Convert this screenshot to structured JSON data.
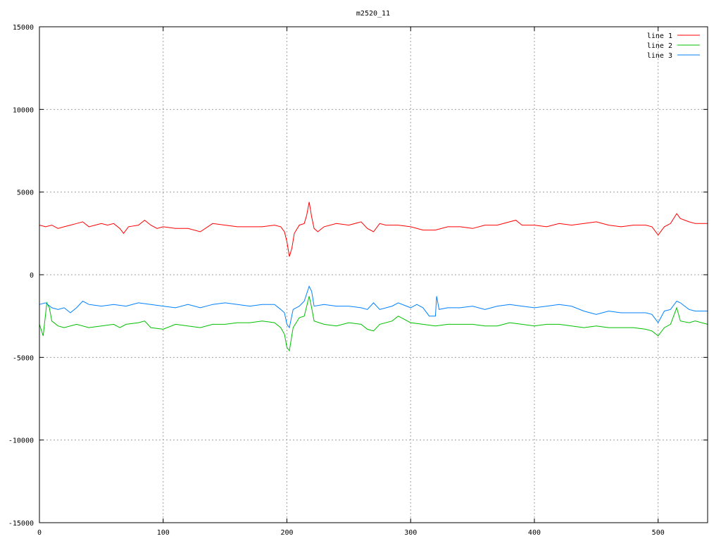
{
  "chart_data": {
    "type": "line",
    "title": "m2520_11",
    "xlabel": "",
    "ylabel": "",
    "xlim": [
      0,
      540
    ],
    "ylim": [
      -15000,
      15000
    ],
    "xticks": [
      0,
      100,
      200,
      300,
      400,
      500
    ],
    "yticks": [
      -15000,
      -10000,
      -5000,
      0,
      5000,
      10000,
      15000
    ],
    "grid": true,
    "legend_position": "top-right",
    "series": [
      {
        "name": "line 1",
        "color": "#ff0000",
        "points": [
          [
            0,
            3000
          ],
          [
            5,
            2900
          ],
          [
            10,
            3000
          ],
          [
            15,
            2800
          ],
          [
            20,
            2900
          ],
          [
            25,
            3000
          ],
          [
            30,
            3100
          ],
          [
            35,
            3200
          ],
          [
            40,
            2900
          ],
          [
            45,
            3000
          ],
          [
            50,
            3100
          ],
          [
            55,
            3000
          ],
          [
            60,
            3100
          ],
          [
            65,
            2800
          ],
          [
            68,
            2500
          ],
          [
            72,
            2900
          ],
          [
            80,
            3000
          ],
          [
            85,
            3300
          ],
          [
            90,
            3000
          ],
          [
            95,
            2800
          ],
          [
            100,
            2900
          ],
          [
            110,
            2800
          ],
          [
            120,
            2800
          ],
          [
            130,
            2600
          ],
          [
            140,
            3100
          ],
          [
            150,
            3000
          ],
          [
            160,
            2900
          ],
          [
            170,
            2900
          ],
          [
            180,
            2900
          ],
          [
            190,
            3000
          ],
          [
            195,
            2900
          ],
          [
            198,
            2600
          ],
          [
            200,
            2000
          ],
          [
            202,
            1100
          ],
          [
            204,
            1600
          ],
          [
            206,
            2500
          ],
          [
            210,
            3000
          ],
          [
            214,
            3100
          ],
          [
            216,
            3600
          ],
          [
            218,
            4400
          ],
          [
            220,
            3500
          ],
          [
            222,
            2800
          ],
          [
            225,
            2600
          ],
          [
            230,
            2900
          ],
          [
            240,
            3100
          ],
          [
            250,
            3000
          ],
          [
            260,
            3200
          ],
          [
            265,
            2800
          ],
          [
            270,
            2600
          ],
          [
            275,
            3100
          ],
          [
            280,
            3000
          ],
          [
            290,
            3000
          ],
          [
            300,
            2900
          ],
          [
            310,
            2700
          ],
          [
            320,
            2700
          ],
          [
            330,
            2900
          ],
          [
            340,
            2900
          ],
          [
            350,
            2800
          ],
          [
            360,
            3000
          ],
          [
            370,
            3000
          ],
          [
            380,
            3200
          ],
          [
            385,
            3300
          ],
          [
            390,
            3000
          ],
          [
            400,
            3000
          ],
          [
            410,
            2900
          ],
          [
            420,
            3100
          ],
          [
            430,
            3000
          ],
          [
            440,
            3100
          ],
          [
            450,
            3200
          ],
          [
            460,
            3000
          ],
          [
            470,
            2900
          ],
          [
            480,
            3000
          ],
          [
            490,
            3000
          ],
          [
            495,
            2900
          ],
          [
            500,
            2400
          ],
          [
            505,
            2900
          ],
          [
            510,
            3100
          ],
          [
            515,
            3700
          ],
          [
            518,
            3400
          ],
          [
            525,
            3200
          ],
          [
            530,
            3100
          ],
          [
            540,
            3100
          ]
        ]
      },
      {
        "name": "line 2",
        "color": "#00c000",
        "points": [
          [
            0,
            -3000
          ],
          [
            3,
            -3700
          ],
          [
            6,
            -1700
          ],
          [
            8,
            -2000
          ],
          [
            10,
            -2800
          ],
          [
            15,
            -3100
          ],
          [
            20,
            -3200
          ],
          [
            30,
            -3000
          ],
          [
            40,
            -3200
          ],
          [
            50,
            -3100
          ],
          [
            60,
            -3000
          ],
          [
            65,
            -3200
          ],
          [
            70,
            -3000
          ],
          [
            80,
            -2900
          ],
          [
            85,
            -2800
          ],
          [
            90,
            -3200
          ],
          [
            100,
            -3300
          ],
          [
            110,
            -3000
          ],
          [
            120,
            -3100
          ],
          [
            130,
            -3200
          ],
          [
            140,
            -3000
          ],
          [
            150,
            -3000
          ],
          [
            160,
            -2900
          ],
          [
            170,
            -2900
          ],
          [
            180,
            -2800
          ],
          [
            190,
            -2900
          ],
          [
            195,
            -3200
          ],
          [
            198,
            -3600
          ],
          [
            200,
            -4400
          ],
          [
            202,
            -4600
          ],
          [
            205,
            -3200
          ],
          [
            210,
            -2600
          ],
          [
            214,
            -2500
          ],
          [
            218,
            -1300
          ],
          [
            220,
            -2000
          ],
          [
            222,
            -2800
          ],
          [
            230,
            -3000
          ],
          [
            240,
            -3100
          ],
          [
            250,
            -2900
          ],
          [
            260,
            -3000
          ],
          [
            265,
            -3300
          ],
          [
            270,
            -3400
          ],
          [
            275,
            -3000
          ],
          [
            285,
            -2800
          ],
          [
            290,
            -2500
          ],
          [
            300,
            -2900
          ],
          [
            310,
            -3000
          ],
          [
            320,
            -3100
          ],
          [
            330,
            -3000
          ],
          [
            340,
            -3000
          ],
          [
            350,
            -3000
          ],
          [
            360,
            -3100
          ],
          [
            370,
            -3100
          ],
          [
            380,
            -2900
          ],
          [
            390,
            -3000
          ],
          [
            400,
            -3100
          ],
          [
            410,
            -3000
          ],
          [
            420,
            -3000
          ],
          [
            430,
            -3100
          ],
          [
            440,
            -3200
          ],
          [
            450,
            -3100
          ],
          [
            460,
            -3200
          ],
          [
            470,
            -3200
          ],
          [
            480,
            -3200
          ],
          [
            490,
            -3300
          ],
          [
            495,
            -3400
          ],
          [
            500,
            -3700
          ],
          [
            505,
            -3200
          ],
          [
            510,
            -3000
          ],
          [
            515,
            -2000
          ],
          [
            518,
            -2800
          ],
          [
            525,
            -2900
          ],
          [
            530,
            -2800
          ],
          [
            540,
            -3000
          ]
        ]
      },
      {
        "name": "line 3",
        "color": "#0080ff",
        "points": [
          [
            0,
            -1800
          ],
          [
            5,
            -1700
          ],
          [
            10,
            -2000
          ],
          [
            15,
            -2100
          ],
          [
            20,
            -2000
          ],
          [
            25,
            -2300
          ],
          [
            30,
            -2000
          ],
          [
            35,
            -1600
          ],
          [
            40,
            -1800
          ],
          [
            50,
            -1900
          ],
          [
            60,
            -1800
          ],
          [
            70,
            -1900
          ],
          [
            80,
            -1700
          ],
          [
            90,
            -1800
          ],
          [
            100,
            -1900
          ],
          [
            110,
            -2000
          ],
          [
            120,
            -1800
          ],
          [
            130,
            -2000
          ],
          [
            140,
            -1800
          ],
          [
            150,
            -1700
          ],
          [
            160,
            -1800
          ],
          [
            170,
            -1900
          ],
          [
            180,
            -1800
          ],
          [
            190,
            -1800
          ],
          [
            195,
            -2100
          ],
          [
            198,
            -2300
          ],
          [
            200,
            -3000
          ],
          [
            202,
            -3200
          ],
          [
            205,
            -2100
          ],
          [
            210,
            -1900
          ],
          [
            214,
            -1600
          ],
          [
            218,
            -700
          ],
          [
            220,
            -1000
          ],
          [
            222,
            -1900
          ],
          [
            230,
            -1800
          ],
          [
            240,
            -1900
          ],
          [
            250,
            -1900
          ],
          [
            260,
            -2000
          ],
          [
            265,
            -2100
          ],
          [
            270,
            -1700
          ],
          [
            275,
            -2100
          ],
          [
            285,
            -1900
          ],
          [
            290,
            -1700
          ],
          [
            300,
            -2000
          ],
          [
            305,
            -1800
          ],
          [
            310,
            -2000
          ],
          [
            315,
            -2500
          ],
          [
            320,
            -2500
          ],
          [
            321,
            -1300
          ],
          [
            323,
            -2100
          ],
          [
            330,
            -2000
          ],
          [
            340,
            -2000
          ],
          [
            350,
            -1900
          ],
          [
            360,
            -2100
          ],
          [
            370,
            -1900
          ],
          [
            380,
            -1800
          ],
          [
            390,
            -1900
          ],
          [
            400,
            -2000
          ],
          [
            410,
            -1900
          ],
          [
            420,
            -1800
          ],
          [
            430,
            -1900
          ],
          [
            440,
            -2200
          ],
          [
            450,
            -2400
          ],
          [
            460,
            -2200
          ],
          [
            470,
            -2300
          ],
          [
            480,
            -2300
          ],
          [
            490,
            -2300
          ],
          [
            495,
            -2400
          ],
          [
            500,
            -2900
          ],
          [
            505,
            -2200
          ],
          [
            510,
            -2100
          ],
          [
            515,
            -1600
          ],
          [
            518,
            -1700
          ],
          [
            525,
            -2100
          ],
          [
            530,
            -2200
          ],
          [
            540,
            -2200
          ]
        ]
      }
    ]
  }
}
